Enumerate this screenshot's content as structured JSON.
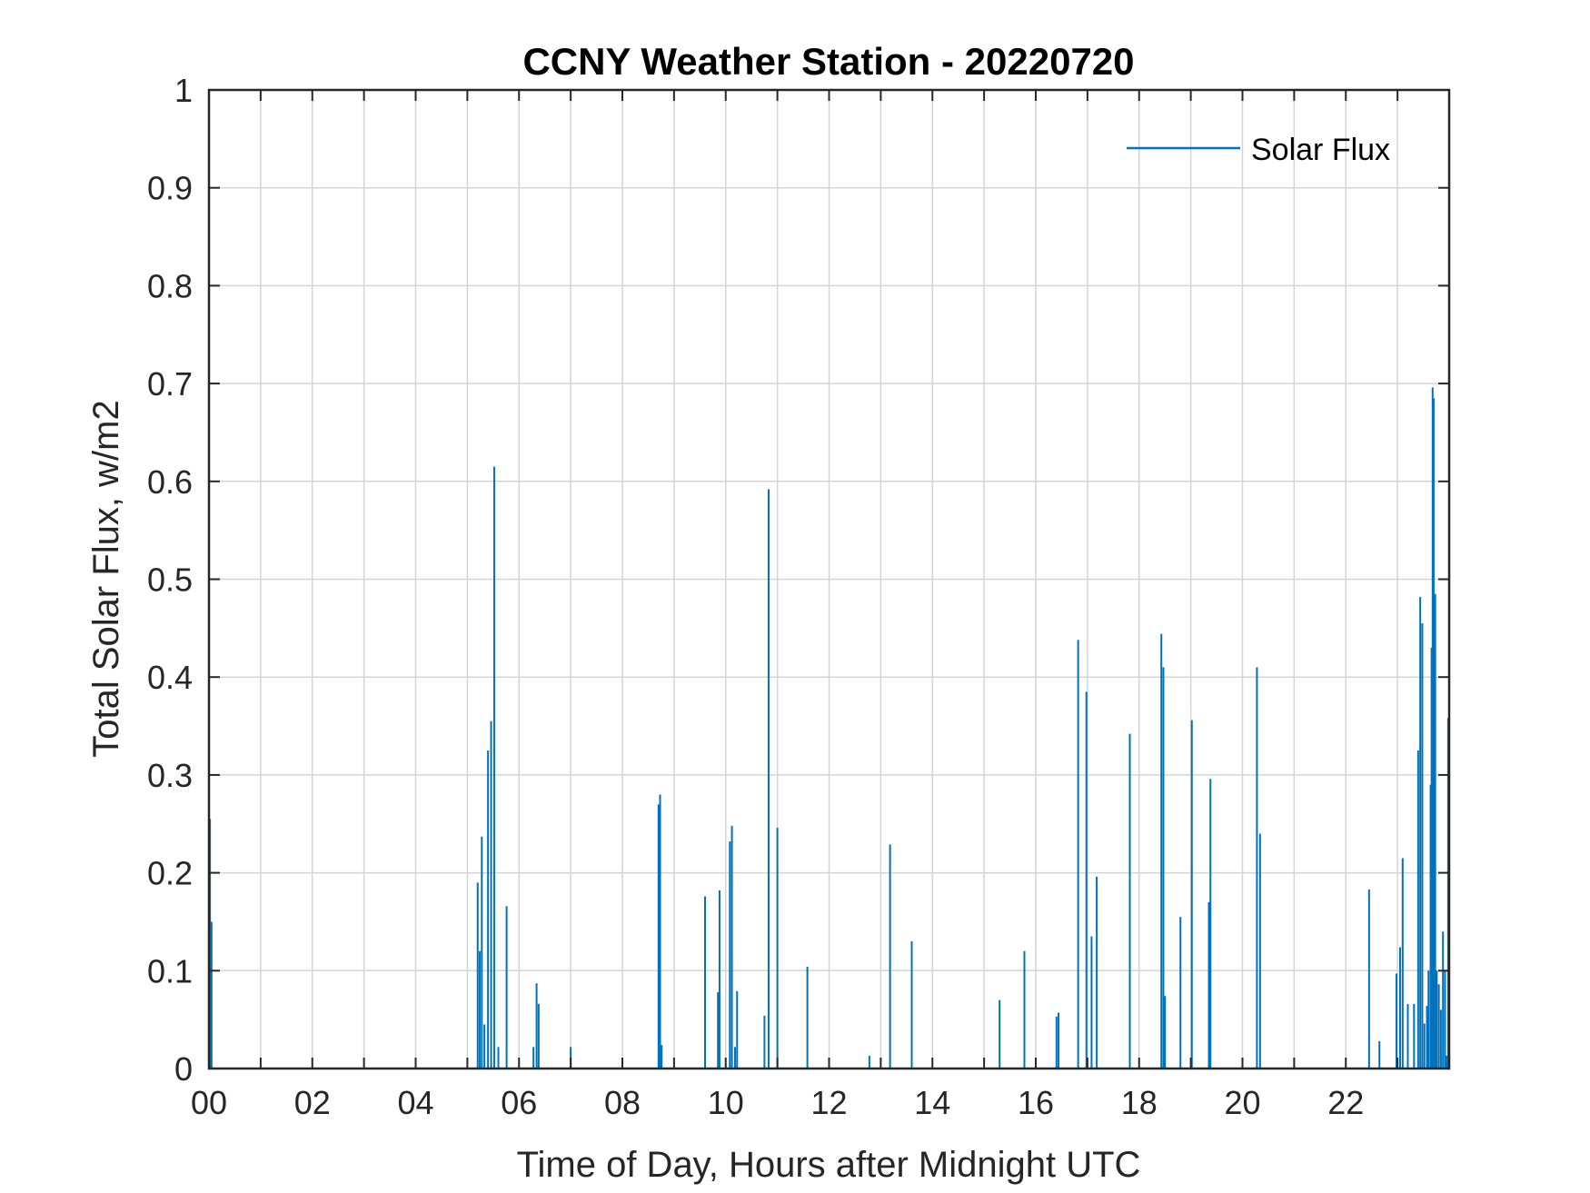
{
  "chart_data": {
    "type": "line",
    "title": "CCNY Weather Station - 20220720",
    "xlabel": "Time of Day, Hours after Midnight UTC",
    "ylabel": "Total Solar Flux, w/m2",
    "xlim": [
      0,
      24
    ],
    "ylim": [
      0,
      1
    ],
    "xticks": [
      0,
      2,
      4,
      6,
      8,
      10,
      12,
      14,
      16,
      18,
      20,
      22
    ],
    "xtick_labels": [
      "00",
      "02",
      "04",
      "06",
      "08",
      "10",
      "12",
      "14",
      "16",
      "18",
      "20",
      "22"
    ],
    "yticks": [
      0,
      0.1,
      0.2,
      0.3,
      0.4,
      0.5,
      0.6,
      0.7,
      0.8,
      0.9,
      1
    ],
    "ytick_labels": [
      "0",
      "0.1",
      "0.2",
      "0.3",
      "0.4",
      "0.5",
      "0.6",
      "0.7",
      "0.8",
      "0.9",
      "1"
    ],
    "grid": true,
    "legend_position": "top-right",
    "series": [
      {
        "name": "Solar Flux",
        "color": "#0072BD",
        "spikes": [
          [
            0.02,
            0.255
          ],
          [
            0.05,
            0.15
          ],
          [
            5.2,
            0.19
          ],
          [
            5.24,
            0.12
          ],
          [
            5.28,
            0.237
          ],
          [
            5.33,
            0.045
          ],
          [
            5.4,
            0.325
          ],
          [
            5.46,
            0.355
          ],
          [
            5.52,
            0.615
          ],
          [
            5.6,
            0.022
          ],
          [
            5.76,
            0.166
          ],
          [
            6.28,
            0.022
          ],
          [
            6.34,
            0.087
          ],
          [
            6.38,
            0.066
          ],
          [
            7.0,
            0.022
          ],
          [
            8.7,
            0.27
          ],
          [
            8.73,
            0.28
          ],
          [
            8.76,
            0.024
          ],
          [
            9.6,
            0.176
          ],
          [
            9.85,
            0.078
          ],
          [
            9.88,
            0.182
          ],
          [
            10.08,
            0.232
          ],
          [
            10.12,
            0.248
          ],
          [
            10.18,
            0.022
          ],
          [
            10.22,
            0.079
          ],
          [
            10.75,
            0.054
          ],
          [
            10.83,
            0.592
          ],
          [
            11.0,
            0.246
          ],
          [
            11.58,
            0.104
          ],
          [
            12.78,
            0.013
          ],
          [
            13.18,
            0.229
          ],
          [
            13.6,
            0.13
          ],
          [
            15.3,
            0.07
          ],
          [
            15.78,
            0.12
          ],
          [
            16.4,
            0.053
          ],
          [
            16.44,
            0.057
          ],
          [
            16.82,
            0.438
          ],
          [
            16.98,
            0.385
          ],
          [
            17.08,
            0.135
          ],
          [
            17.18,
            0.196
          ],
          [
            17.82,
            0.342
          ],
          [
            18.43,
            0.444
          ],
          [
            18.47,
            0.41
          ],
          [
            18.5,
            0.074
          ],
          [
            18.8,
            0.155
          ],
          [
            19.02,
            0.356
          ],
          [
            19.35,
            0.17
          ],
          [
            19.38,
            0.296
          ],
          [
            20.28,
            0.41
          ],
          [
            20.34,
            0.24
          ],
          [
            22.45,
            0.183
          ],
          [
            22.65,
            0.028
          ],
          [
            22.98,
            0.097
          ],
          [
            23.05,
            0.124
          ],
          [
            23.1,
            0.215
          ],
          [
            23.2,
            0.066
          ],
          [
            23.32,
            0.066
          ],
          [
            23.4,
            0.325
          ],
          [
            23.44,
            0.482
          ],
          [
            23.48,
            0.455
          ],
          [
            23.52,
            0.046
          ],
          [
            23.57,
            0.064
          ],
          [
            23.6,
            0.1
          ],
          [
            23.64,
            0.29
          ],
          [
            23.66,
            0.43
          ],
          [
            23.68,
            0.696
          ],
          [
            23.7,
            0.685
          ],
          [
            23.73,
            0.485
          ],
          [
            23.76,
            0.1
          ],
          [
            23.8,
            0.086
          ],
          [
            23.84,
            0.06
          ],
          [
            23.88,
            0.14
          ],
          [
            23.92,
            0.1
          ],
          [
            23.95,
            0.013
          ],
          [
            23.98,
            0.358
          ]
        ]
      }
    ]
  }
}
